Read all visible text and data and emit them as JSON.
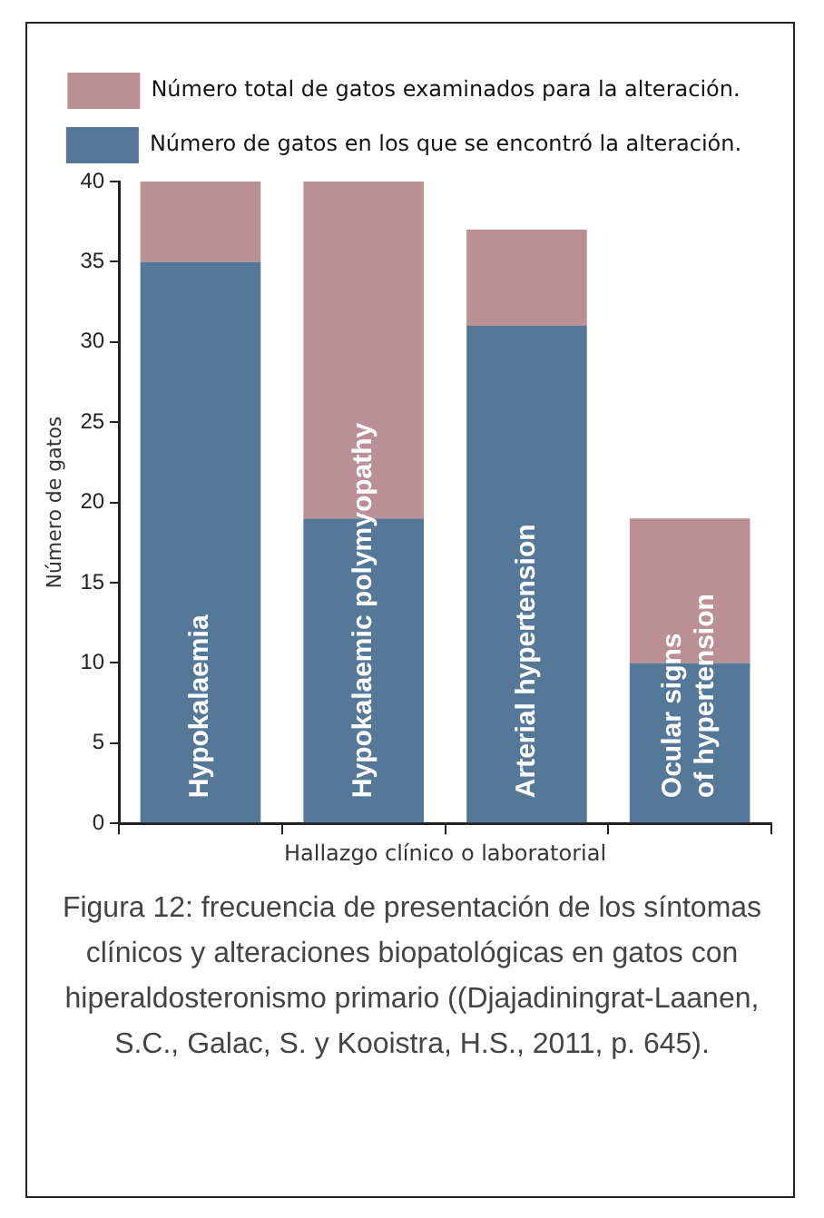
{
  "chart_data": {
    "type": "bar",
    "stacked": true,
    "categories": [
      "Hypokalaemia",
      "Hypokalaemic polymyopathy",
      "Arterial hypertension",
      "Ocular signs of hypertension"
    ],
    "series": [
      {
        "name": "Número de gatos en los que se encontró la alteración.",
        "color": "#557899",
        "values": [
          35,
          19,
          31,
          10
        ]
      },
      {
        "name": "Número total de gatos examinados para la alteración.",
        "color": "#bb9095",
        "values": [
          5,
          21,
          6,
          9
        ]
      }
    ],
    "xlabel": "Hallazgo clínico o laboratorial",
    "ylabel": "Número de gatos",
    "ylim": [
      0,
      40
    ],
    "yticks": [
      0,
      5,
      10,
      15,
      20,
      25,
      30,
      35,
      40
    ],
    "grid": false,
    "legend": "top",
    "tick_labels": "y",
    "annotations": [
      "Figura 12: frecuencia de presentación de los síntomas clínicos y alteraciones biopatológicas en gatos con hiperaldosteronismo primario ((Djajadiningrat-Laanen, S.C., Galac, S. y Kooistra, H.S., 2011, p. 645)."
    ]
  }
}
